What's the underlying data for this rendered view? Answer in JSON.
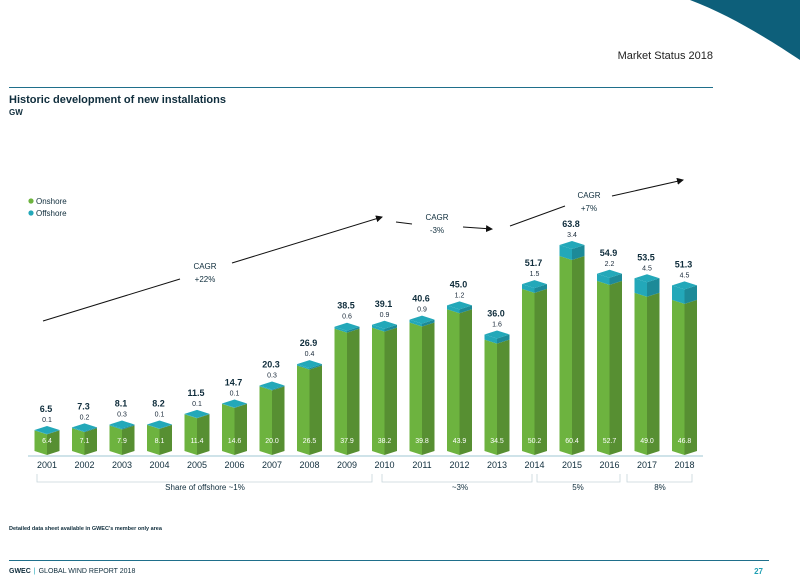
{
  "header": {
    "section": "Market Status 2018",
    "title": "Historic development of new installations",
    "unit": "GW"
  },
  "chart_data": {
    "type": "bar",
    "stacked": true,
    "categories": [
      "2001",
      "2002",
      "2003",
      "2004",
      "2005",
      "2006",
      "2007",
      "2008",
      "2009",
      "2010",
      "2011",
      "2012",
      "2013",
      "2014",
      "2015",
      "2016",
      "2017",
      "2018"
    ],
    "series": [
      {
        "name": "Onshore",
        "color": "#6db33f",
        "values": [
          6.4,
          7.1,
          7.9,
          8.1,
          11.4,
          14.6,
          20.0,
          26.5,
          37.9,
          38.2,
          39.8,
          43.9,
          34.5,
          50.2,
          60.4,
          52.7,
          49.0,
          46.8
        ],
        "labels": [
          "6.4",
          "7.1",
          "7.9",
          "8.1",
          "11.4",
          "14.6",
          "20.0",
          "26.5",
          "37.9",
          "38.2",
          "39.8",
          "43.9",
          "34.5",
          "50.2",
          "60.4",
          "52.7",
          "49.0",
          "46.8"
        ]
      },
      {
        "name": "Offshore",
        "color": "#23a8b9",
        "values": [
          0.1,
          0.2,
          0.3,
          0.1,
          0.1,
          0.1,
          0.3,
          0.4,
          0.6,
          0.9,
          0.9,
          1.2,
          1.6,
          1.5,
          3.4,
          2.2,
          4.5,
          4.5
        ],
        "labels": [
          "0.1",
          "0.2",
          "0.3",
          "0.1",
          "0.1",
          "0.1",
          "0.3",
          "0.4",
          "0.6",
          "0.9",
          "0.9",
          "1.2",
          "1.6",
          "1.5",
          "3.4",
          "2.2",
          "4.5",
          "4.5"
        ]
      }
    ],
    "totals": [
      "6.5",
      "7.3",
      "8.1",
      "8.2",
      "11.5",
      "14.7",
      "20.3",
      "26.9",
      "38.5",
      "39.1",
      "40.6",
      "45.0",
      "36.0",
      "51.7",
      "63.8",
      "54.9",
      "53.5",
      "51.3"
    ],
    "ylim": [
      0,
      70
    ],
    "legend": {
      "placement": "top-left",
      "entries": [
        "Onshore",
        "Offshore"
      ]
    },
    "cagr_annotations": [
      {
        "label": "CAGR",
        "value": "+22%",
        "from": "2001",
        "to": "2009"
      },
      {
        "label": "CAGR",
        "value": "-3%",
        "from": "2010",
        "to": "2013"
      },
      {
        "label": "CAGR",
        "value": "+7%",
        "from": "2014",
        "to": "2018"
      }
    ],
    "offshore_share_groups": [
      {
        "label": "Share of offshore ~1%",
        "from": "2001",
        "to": "2009"
      },
      {
        "label": "~3%",
        "from": "2010",
        "to": "2014"
      },
      {
        "label": "5%",
        "from": "2015",
        "to": "2016"
      },
      {
        "label": "8%",
        "from": "2017",
        "to": "2018"
      }
    ]
  },
  "footnote": "Detailed data sheet available in GWEC's member only area",
  "footer": {
    "org": "GWEC",
    "report": "GLOBAL WIND REPORT 2018",
    "page": "27"
  },
  "colors": {
    "accent": "#0d5f7a",
    "onshore": "#6db33f",
    "offshore": "#23a8b9",
    "text": "#0f2d3c"
  }
}
